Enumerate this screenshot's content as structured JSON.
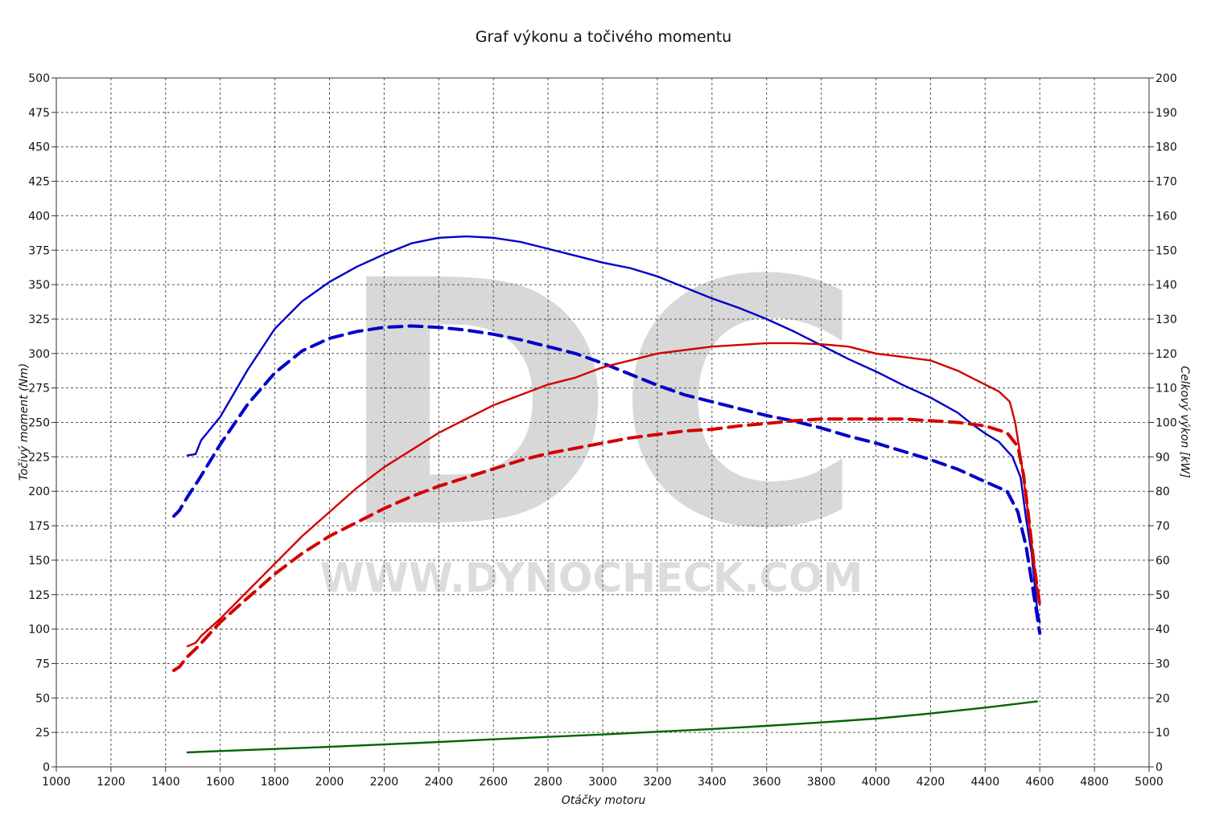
{
  "chart_data": {
    "type": "line",
    "title": "Graf výkonu a točivého momentu",
    "xlabel": "Otáčky motoru",
    "ylabel_left": "Točivý moment (Nm)",
    "ylabel_right": "Celkový výkon [kW]",
    "xlim": [
      1000,
      5000
    ],
    "ylim_left": [
      0,
      500
    ],
    "ylim_right": [
      0,
      200
    ],
    "x_ticks": [
      "1000",
      "1200",
      "1400",
      "1600",
      "1800",
      "2000",
      "2200",
      "2400",
      "2600",
      "2800",
      "3000",
      "3200",
      "3400",
      "3600",
      "3800",
      "4000",
      "4200",
      "4400",
      "4600",
      "4800",
      "5000"
    ],
    "y_left_ticks": [
      "0",
      "25",
      "50",
      "75",
      "100",
      "125",
      "150",
      "175",
      "200",
      "225",
      "250",
      "275",
      "300",
      "325",
      "350",
      "375",
      "400",
      "425",
      "450",
      "475",
      "500"
    ],
    "y_right_ticks": [
      "0",
      "10",
      "20",
      "30",
      "40",
      "50",
      "60",
      "70",
      "80",
      "90",
      "100",
      "110",
      "120",
      "130",
      "140",
      "150",
      "160",
      "170",
      "180",
      "190",
      "200"
    ],
    "grid": true,
    "watermark": {
      "logo": "DC",
      "url": "WWW.DYNOCHECK.COM"
    },
    "series": [
      {
        "axis": "left",
        "color": "#0000c8",
        "dash": "solid",
        "x": [
          1480,
          1510,
          1530,
          1600,
          1700,
          1800,
          1900,
          2000,
          2100,
          2200,
          2300,
          2400,
          2500,
          2600,
          2700,
          2800,
          2900,
          3000,
          3100,
          3200,
          3300,
          3400,
          3500,
          3600,
          3700,
          3800,
          3900,
          4000,
          4100,
          4200,
          4300,
          4350,
          4400,
          4450,
          4500,
          4530,
          4550,
          4570,
          4590,
          4600
        ],
        "y": [
          226,
          227,
          237,
          254,
          288,
          318,
          338,
          352,
          363,
          372,
          380,
          384,
          385,
          384,
          381,
          376,
          371,
          366,
          362,
          356,
          348,
          340,
          333,
          325,
          316,
          306,
          296,
          287,
          277,
          268,
          257,
          249,
          242,
          236,
          225,
          210,
          180,
          155,
          115,
          105
        ]
      },
      {
        "axis": "left",
        "color": "#0000c8",
        "dash": "dashed",
        "x": [
          1430,
          1450,
          1480,
          1520,
          1600,
          1700,
          1800,
          1900,
          2000,
          2100,
          2200,
          2300,
          2400,
          2500,
          2600,
          2700,
          2800,
          2900,
          3000,
          3100,
          3200,
          3300,
          3400,
          3500,
          3600,
          3700,
          3800,
          3900,
          4000,
          4100,
          4200,
          4300,
          4400,
          4480,
          4520,
          4550,
          4570,
          4590,
          4600
        ],
        "y": [
          182,
          186,
          196,
          208,
          234,
          263,
          286,
          302,
          311,
          316,
          319,
          320,
          319,
          317,
          314,
          310,
          305,
          300,
          293,
          285,
          277,
          270,
          265,
          260,
          255,
          251,
          246,
          240,
          235,
          229,
          223,
          216,
          207,
          200,
          185,
          160,
          135,
          110,
          97
        ]
      },
      {
        "axis": "right",
        "color": "#d40000",
        "dash": "solid",
        "x": [
          1480,
          1510,
          1530,
          1600,
          1700,
          1800,
          1900,
          2000,
          2100,
          2200,
          2300,
          2400,
          2500,
          2600,
          2700,
          2800,
          2900,
          3000,
          3100,
          3200,
          3300,
          3400,
          3500,
          3600,
          3700,
          3800,
          3900,
          4000,
          4100,
          4200,
          4300,
          4350,
          4400,
          4450,
          4490,
          4510,
          4530,
          4550,
          4570,
          4590,
          4600
        ],
        "y": [
          35,
          36,
          38,
          43,
          51,
          59,
          67,
          74,
          81,
          87,
          92,
          97,
          101,
          105,
          108,
          111,
          113,
          116,
          118,
          120,
          121,
          122,
          122.5,
          123,
          123,
          122.7,
          122,
          120,
          119,
          118,
          115,
          113,
          111,
          109,
          106,
          100,
          90,
          78,
          65,
          52,
          47
        ]
      },
      {
        "axis": "right",
        "color": "#d40000",
        "dash": "dashed",
        "x": [
          1430,
          1450,
          1480,
          1520,
          1600,
          1700,
          1800,
          1900,
          2000,
          2100,
          2200,
          2300,
          2400,
          2500,
          2600,
          2700,
          2800,
          2900,
          3000,
          3100,
          3200,
          3300,
          3400,
          3500,
          3600,
          3700,
          3800,
          3900,
          4000,
          4100,
          4200,
          4300,
          4400,
          4480,
          4520,
          4540,
          4560,
          4580,
          4600
        ],
        "y": [
          28,
          29,
          32,
          35,
          42,
          49,
          56,
          62,
          67,
          71,
          75,
          78.5,
          81.5,
          84,
          86.5,
          89,
          91,
          92.5,
          94,
          95.5,
          96.5,
          97.5,
          98,
          99,
          99.7,
          100.5,
          101,
          101,
          101,
          101,
          100.5,
          100,
          99,
          97,
          93,
          85,
          72,
          58,
          47
        ]
      },
      {
        "axis": "right",
        "color": "#006400",
        "dash": "solid",
        "x": [
          1480,
          1600,
          1800,
          2000,
          2200,
          2400,
          2600,
          2800,
          3000,
          3200,
          3400,
          3600,
          3800,
          4000,
          4200,
          4400,
          4590
        ],
        "y": [
          4.2,
          4.6,
          5.2,
          5.8,
          6.5,
          7.2,
          8.0,
          8.7,
          9.4,
          10.2,
          11.0,
          11.9,
          12.9,
          14.0,
          15.5,
          17.2,
          19.0
        ]
      }
    ]
  }
}
